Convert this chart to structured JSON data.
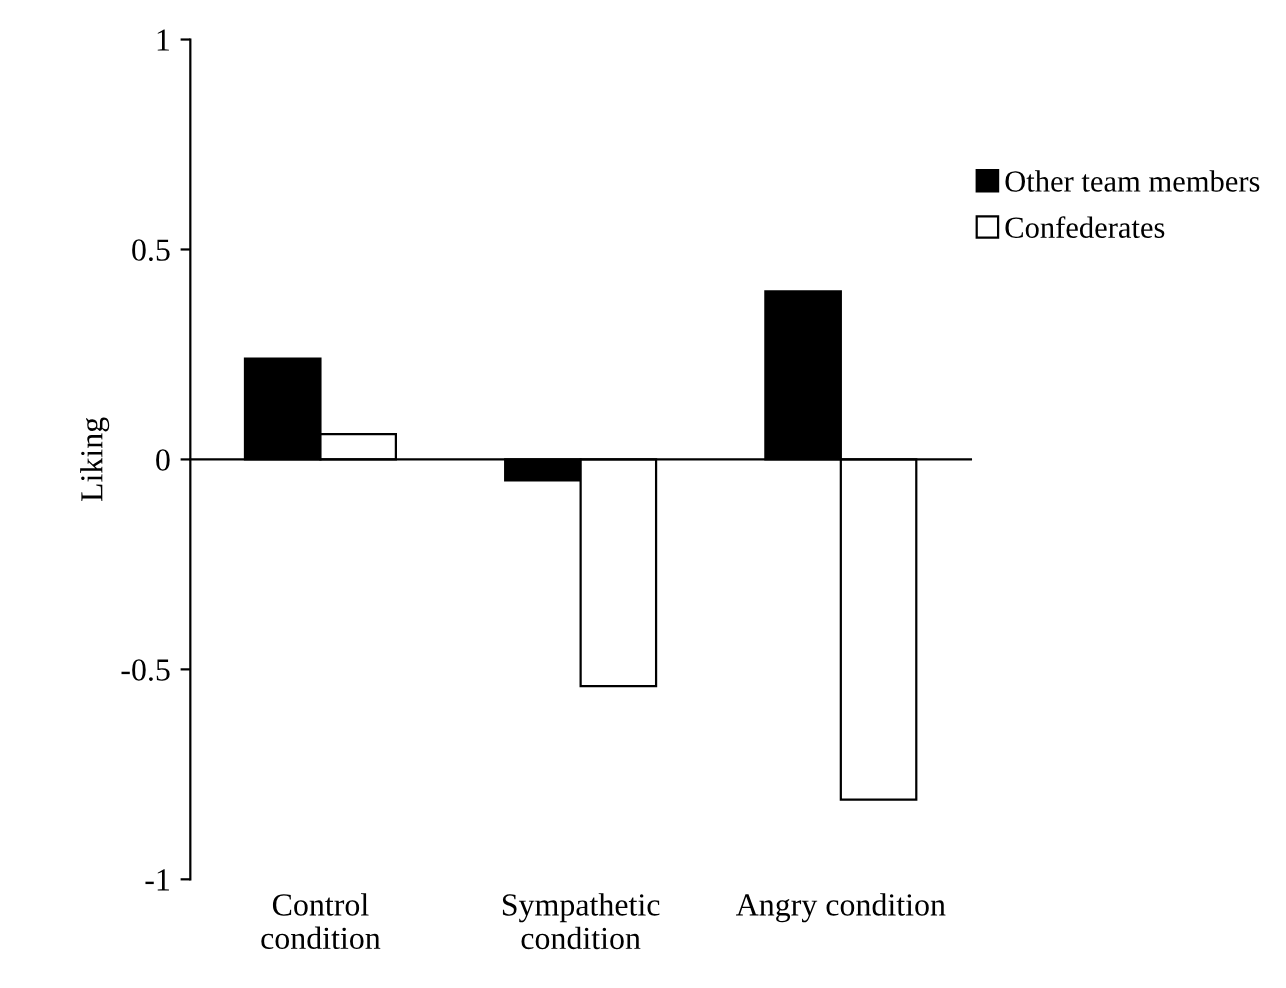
{
  "chart_data": {
    "type": "bar",
    "ylabel": "Liking",
    "categories": [
      "Control\ncondition",
      "Sympathetic\ncondition",
      "Angry condition"
    ],
    "series": [
      {
        "name": "Other team members",
        "color": "#000000",
        "values": [
          0.24,
          -0.05,
          0.4
        ]
      },
      {
        "name": "Confederates",
        "color": "#ffffff",
        "values": [
          0.06,
          -0.54,
          -0.81
        ]
      }
    ],
    "ylim": [
      -1,
      1
    ],
    "yticks": [
      {
        "value": -1,
        "label": "-1"
      },
      {
        "value": -0.5,
        "label": "-0.5"
      },
      0,
      0.5,
      1
    ],
    "legend": "top right"
  }
}
